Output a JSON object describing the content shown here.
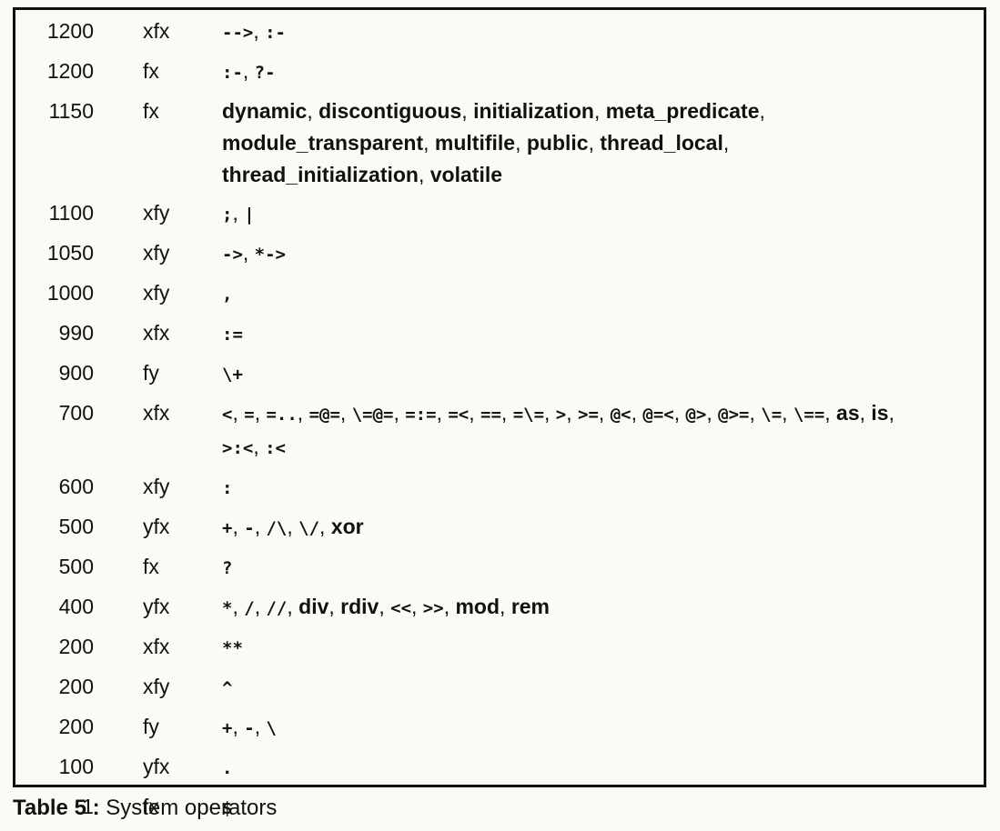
{
  "table": {
    "rows": [
      {
        "priority": "1200",
        "type": "xfx",
        "ops": [
          {
            "t": "-->",
            "k": "sym"
          },
          {
            "t": ", ",
            "k": "sep"
          },
          {
            "t": ":-",
            "k": "sym"
          }
        ]
      },
      {
        "priority": "1200",
        "type": "fx",
        "ops": [
          {
            "t": ":-",
            "k": "sym"
          },
          {
            "t": ", ",
            "k": "sep"
          },
          {
            "t": "?-",
            "k": "sym"
          }
        ]
      },
      {
        "priority": "1150",
        "type": "fx",
        "ops": [
          {
            "t": "dynamic",
            "k": "word"
          },
          {
            "t": ", ",
            "k": "sep"
          },
          {
            "t": "discontiguous",
            "k": "word"
          },
          {
            "t": ", ",
            "k": "sep"
          },
          {
            "t": "initialization",
            "k": "word"
          },
          {
            "t": ", ",
            "k": "sep"
          },
          {
            "t": "meta_predicate",
            "k": "word"
          },
          {
            "t": ",",
            "k": "sep"
          },
          {
            "t": "",
            "k": "br"
          },
          {
            "t": "module_transparent",
            "k": "word"
          },
          {
            "t": ", ",
            "k": "sep"
          },
          {
            "t": "multifile",
            "k": "word"
          },
          {
            "t": ", ",
            "k": "sep"
          },
          {
            "t": "public",
            "k": "word"
          },
          {
            "t": ", ",
            "k": "sep"
          },
          {
            "t": "thread_local",
            "k": "word"
          },
          {
            "t": ",",
            "k": "sep"
          },
          {
            "t": "",
            "k": "br"
          },
          {
            "t": "thread_initialization",
            "k": "word"
          },
          {
            "t": ", ",
            "k": "sep"
          },
          {
            "t": "volatile",
            "k": "word"
          }
        ]
      },
      {
        "priority": "1100",
        "type": "xfy",
        "ops": [
          {
            "t": ";",
            "k": "sym"
          },
          {
            "t": ", ",
            "k": "sep"
          },
          {
            "t": "|",
            "k": "sym"
          }
        ]
      },
      {
        "priority": "1050",
        "type": "xfy",
        "ops": [
          {
            "t": "->",
            "k": "sym"
          },
          {
            "t": ", ",
            "k": "sep"
          },
          {
            "t": "*->",
            "k": "sym"
          }
        ]
      },
      {
        "priority": "1000",
        "type": "xfy",
        "ops": [
          {
            "t": ",",
            "k": "sym"
          }
        ]
      },
      {
        "priority": "990",
        "type": "xfx",
        "ops": [
          {
            "t": ":=",
            "k": "sym"
          }
        ]
      },
      {
        "priority": "900",
        "type": "fy",
        "ops": [
          {
            "t": "\\+",
            "k": "sym"
          }
        ]
      },
      {
        "priority": "700",
        "type": "xfx",
        "ops": [
          {
            "t": "<",
            "k": "sym"
          },
          {
            "t": ", ",
            "k": "sep"
          },
          {
            "t": "=",
            "k": "sym"
          },
          {
            "t": ", ",
            "k": "sep"
          },
          {
            "t": "=..",
            "k": "sym"
          },
          {
            "t": ", ",
            "k": "sep"
          },
          {
            "t": "=@=",
            "k": "sym"
          },
          {
            "t": ", ",
            "k": "sep"
          },
          {
            "t": "\\=@=",
            "k": "sym"
          },
          {
            "t": ", ",
            "k": "sep"
          },
          {
            "t": "=:=",
            "k": "sym"
          },
          {
            "t": ", ",
            "k": "sep"
          },
          {
            "t": "=<",
            "k": "sym"
          },
          {
            "t": ", ",
            "k": "sep"
          },
          {
            "t": "==",
            "k": "sym"
          },
          {
            "t": ", ",
            "k": "sep"
          },
          {
            "t": "=\\=",
            "k": "sym"
          },
          {
            "t": ", ",
            "k": "sep"
          },
          {
            "t": ">",
            "k": "sym"
          },
          {
            "t": ", ",
            "k": "sep"
          },
          {
            "t": ">=",
            "k": "sym"
          },
          {
            "t": ", ",
            "k": "sep"
          },
          {
            "t": "@<",
            "k": "sym"
          },
          {
            "t": ", ",
            "k": "sep"
          },
          {
            "t": "@=<",
            "k": "sym"
          },
          {
            "t": ", ",
            "k": "sep"
          },
          {
            "t": "@>",
            "k": "sym"
          },
          {
            "t": ", ",
            "k": "sep"
          },
          {
            "t": "@>=",
            "k": "sym"
          },
          {
            "t": ", ",
            "k": "sep"
          },
          {
            "t": "\\=",
            "k": "sym"
          },
          {
            "t": ", ",
            "k": "sep"
          },
          {
            "t": "\\==",
            "k": "sym"
          },
          {
            "t": ", ",
            "k": "sep"
          },
          {
            "t": "as",
            "k": "word"
          },
          {
            "t": ", ",
            "k": "sep"
          },
          {
            "t": "is",
            "k": "word"
          },
          {
            "t": ",",
            "k": "sep"
          },
          {
            "t": "",
            "k": "br"
          },
          {
            "t": ">:<",
            "k": "sym"
          },
          {
            "t": ", ",
            "k": "sep"
          },
          {
            "t": ":<",
            "k": "sym"
          }
        ]
      },
      {
        "priority": "600",
        "type": "xfy",
        "ops": [
          {
            "t": ":",
            "k": "sym"
          }
        ]
      },
      {
        "priority": "500",
        "type": "yfx",
        "ops": [
          {
            "t": "+",
            "k": "sym"
          },
          {
            "t": ", ",
            "k": "sep"
          },
          {
            "t": "-",
            "k": "sym"
          },
          {
            "t": ", ",
            "k": "sep"
          },
          {
            "t": "/\\",
            "k": "sym"
          },
          {
            "t": ", ",
            "k": "sep"
          },
          {
            "t": "\\/",
            "k": "sym"
          },
          {
            "t": ", ",
            "k": "sep"
          },
          {
            "t": "xor",
            "k": "word"
          }
        ]
      },
      {
        "priority": "500",
        "type": "fx",
        "ops": [
          {
            "t": "?",
            "k": "sym"
          }
        ]
      },
      {
        "priority": "400",
        "type": "yfx",
        "ops": [
          {
            "t": "*",
            "k": "sym"
          },
          {
            "t": ", ",
            "k": "sep"
          },
          {
            "t": "/",
            "k": "sym"
          },
          {
            "t": ", ",
            "k": "sep"
          },
          {
            "t": "//",
            "k": "sym"
          },
          {
            "t": ", ",
            "k": "sep"
          },
          {
            "t": "div",
            "k": "word"
          },
          {
            "t": ", ",
            "k": "sep"
          },
          {
            "t": "rdiv",
            "k": "word"
          },
          {
            "t": ", ",
            "k": "sep"
          },
          {
            "t": "<<",
            "k": "sym"
          },
          {
            "t": ", ",
            "k": "sep"
          },
          {
            "t": ">>",
            "k": "sym"
          },
          {
            "t": ", ",
            "k": "sep"
          },
          {
            "t": "mod",
            "k": "word"
          },
          {
            "t": ", ",
            "k": "sep"
          },
          {
            "t": "rem",
            "k": "word"
          }
        ]
      },
      {
        "priority": "200",
        "type": "xfx",
        "ops": [
          {
            "t": "**",
            "k": "sym"
          }
        ]
      },
      {
        "priority": "200",
        "type": "xfy",
        "ops": [
          {
            "t": "^",
            "k": "sym"
          }
        ]
      },
      {
        "priority": "200",
        "type": "fy",
        "ops": [
          {
            "t": "+",
            "k": "sym"
          },
          {
            "t": ", ",
            "k": "sep"
          },
          {
            "t": "-",
            "k": "sym"
          },
          {
            "t": ", ",
            "k": "sep"
          },
          {
            "t": "\\",
            "k": "sym"
          }
        ]
      },
      {
        "priority": "100",
        "type": "yfx",
        "ops": [
          {
            "t": ".",
            "k": "sym"
          }
        ]
      },
      {
        "priority": "1",
        "type": "fx",
        "ops": [
          {
            "t": "$",
            "k": "sym"
          }
        ]
      }
    ]
  },
  "caption": {
    "label": "Table 5 :",
    "text": "System operators"
  }
}
